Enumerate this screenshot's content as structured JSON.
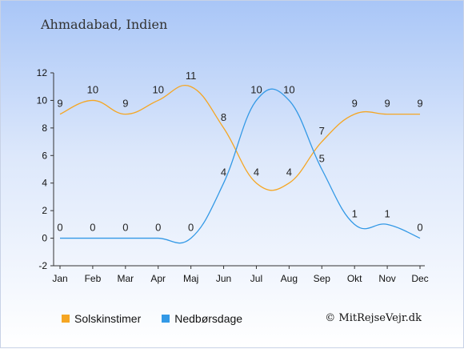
{
  "location": "Ahmadabad, Indien",
  "copyright": "© MitRejseVejr.dk",
  "colors": {
    "sunshine": "#f5a623",
    "rain": "#3399e6",
    "axis": "#333333",
    "grid": "#ffffff"
  },
  "chart_data": {
    "type": "line",
    "categories": [
      "Jan",
      "Feb",
      "Mar",
      "Apr",
      "Maj",
      "Jun",
      "Jul",
      "Aug",
      "Sep",
      "Okt",
      "Nov",
      "Dec"
    ],
    "yticks": [
      "12",
      "10",
      "8",
      "6",
      "4",
      "2",
      "0",
      "-2"
    ],
    "ylim": [
      -2,
      12
    ],
    "grid": false,
    "legend_position": "bottom",
    "series": [
      {
        "name": "Solskinstimer",
        "values": [
          9,
          10,
          9,
          10,
          11,
          8,
          4,
          4,
          7,
          9,
          9,
          9
        ]
      },
      {
        "name": "Nedbørsdage",
        "values": [
          0,
          0,
          0,
          0,
          0,
          4,
          10,
          10,
          5,
          1,
          1,
          0
        ]
      }
    ]
  }
}
